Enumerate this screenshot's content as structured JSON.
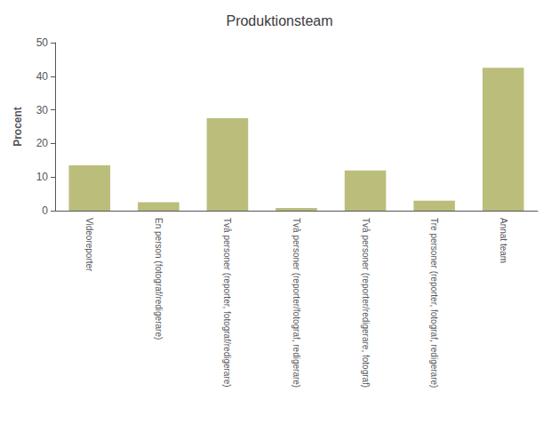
{
  "chart_data": {
    "type": "bar",
    "title": "Produktionsteam",
    "ylabel": "Procent",
    "categories": [
      "Videoreporter",
      "En person (fotograf/redigerare)",
      "Två personer (reporter, fotograf/redigerare)",
      "Två personer (reporter/fotograf, redigerare)",
      "Två personer (reporter/redigerare, fotograf)",
      "Tre personer (reporter, fotograf, redigerare)",
      "Annat team"
    ],
    "values": [
      13.5,
      2.5,
      27.5,
      0.8,
      12.0,
      3.0,
      42.5
    ],
    "color": "#bbbe7b",
    "ylim": [
      0,
      50
    ],
    "yticks": [
      0,
      10,
      20,
      30,
      40,
      50
    ],
    "grid": false
  }
}
